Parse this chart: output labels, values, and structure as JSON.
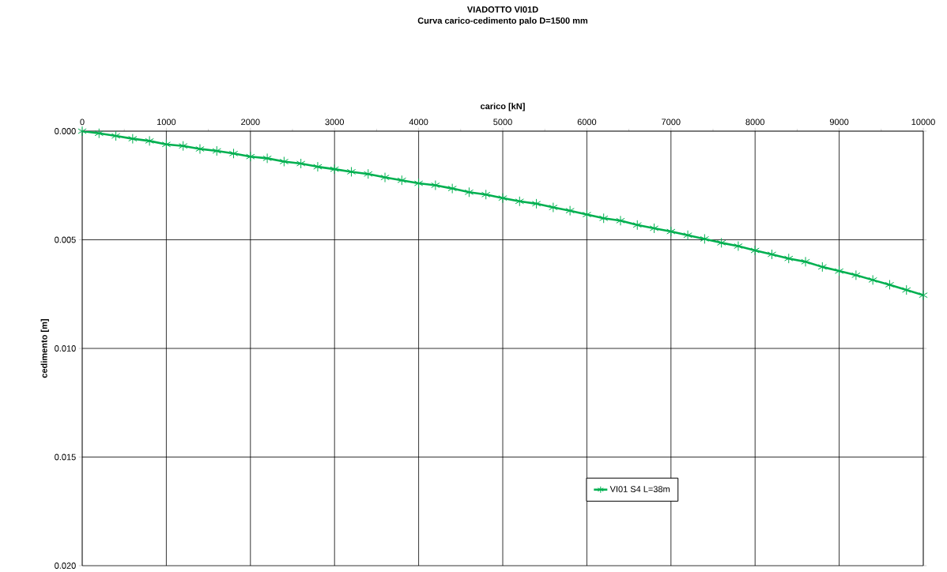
{
  "chart_data": {
    "type": "line",
    "title": "VIADOTTO  VI01D",
    "subtitle": "Curva carico-cedimento palo D=1500 mm",
    "xlabel": "carico [kN]",
    "ylabel": "cedimento [m]",
    "x": [
      0,
      200,
      400,
      600,
      800,
      1000,
      1200,
      1400,
      1600,
      1800,
      2000,
      2200,
      2400,
      2600,
      2800,
      3000,
      3200,
      3400,
      3600,
      3800,
      4000,
      4200,
      4400,
      4600,
      4800,
      5000,
      5200,
      5400,
      5600,
      5800,
      6000,
      6200,
      6400,
      6600,
      6800,
      7000,
      7200,
      7400,
      7600,
      7800,
      8000,
      8200,
      8400,
      8600,
      8800,
      9000,
      9200,
      9400,
      9600,
      9800,
      10000
    ],
    "series": [
      {
        "name": "VI01 S4 L=38m",
        "color": "#00b050",
        "values": [
          0,
          0.0001,
          0.00022,
          0.00035,
          0.00045,
          0.00061,
          0.00068,
          0.00082,
          0.00091,
          0.00103,
          0.00117,
          0.00125,
          0.0014,
          0.00149,
          0.00164,
          0.00175,
          0.00187,
          0.00197,
          0.00213,
          0.00226,
          0.0024,
          0.00249,
          0.00264,
          0.00281,
          0.00292,
          0.00308,
          0.00323,
          0.00334,
          0.00351,
          0.00366,
          0.00384,
          0.00401,
          0.00412,
          0.00432,
          0.00447,
          0.00462,
          0.00479,
          0.00496,
          0.00514,
          0.00529,
          0.00549,
          0.00567,
          0.00586,
          0.00601,
          0.00625,
          0.00644,
          0.00663,
          0.00685,
          0.00707,
          0.00731,
          0.00755
        ]
      }
    ],
    "xlim": [
      0,
      10000
    ],
    "xticks": [
      0,
      1000,
      2000,
      3000,
      4000,
      5000,
      6000,
      7000,
      8000,
      9000,
      10000
    ],
    "ylim": [
      0.02,
      0
    ],
    "yticks": [
      {
        "value": 0,
        "label": "0.000"
      },
      {
        "value": 0.005,
        "label": "0.005"
      },
      {
        "value": 0.01,
        "label": "0.010"
      },
      {
        "value": 0.015,
        "label": "0.015"
      },
      {
        "value": 0.02,
        "label": "0.020"
      }
    ],
    "grid": true,
    "legend": "bottom right",
    "marker": "cross",
    "line_style": "solid"
  }
}
